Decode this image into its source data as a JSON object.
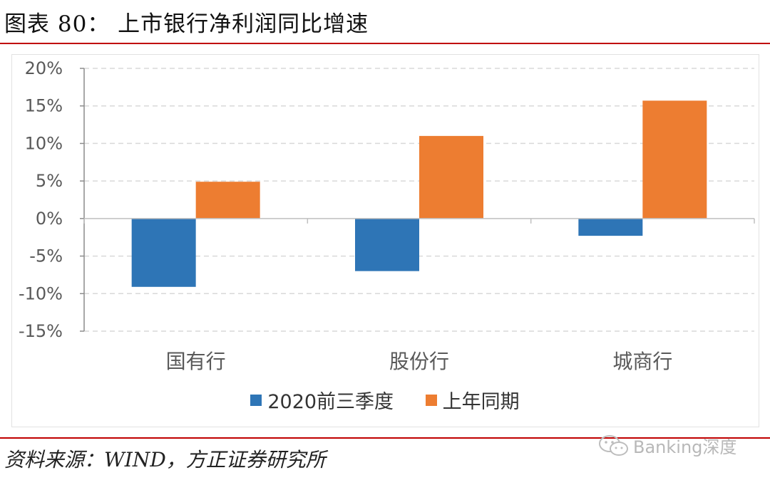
{
  "header": {
    "title": "图表 80：   上市银行净利润同比增速"
  },
  "chart_data": {
    "type": "bar",
    "categories": [
      "国有行",
      "股份行",
      "城商行"
    ],
    "series": [
      {
        "name": "2020前三季度",
        "color": "#2e75b6",
        "values": [
          -9.1,
          -7.0,
          -2.3
        ]
      },
      {
        "name": "上年同期",
        "color": "#ed7d31",
        "values": [
          4.9,
          11.0,
          15.7
        ]
      }
    ],
    "ylim": [
      -15,
      20
    ],
    "yticks": [
      "20%",
      "15%",
      "10%",
      "5%",
      "0%",
      "-5%",
      "-10%",
      "-15%"
    ],
    "ytick_values": [
      20,
      15,
      10,
      5,
      0,
      -5,
      -10,
      -15
    ],
    "title": "",
    "xlabel": "",
    "ylabel": "",
    "grid": true,
    "legend_position": "bottom"
  },
  "footer": {
    "source": "资料来源：WIND，方正证券研究所",
    "watermark": "Banking深度",
    "watermark_icon": "wechat-icon"
  }
}
